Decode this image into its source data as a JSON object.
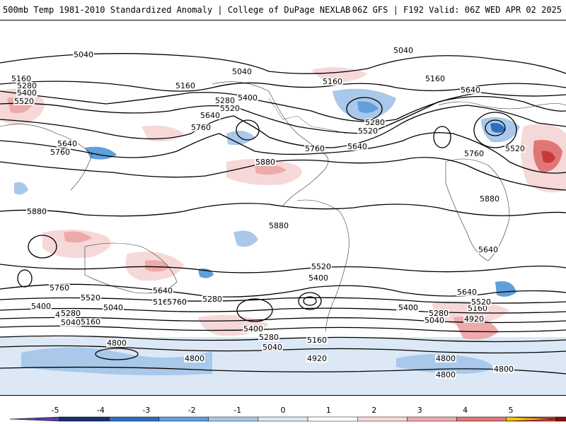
{
  "header": {
    "title_left": "500mb Temp 1981-2010 Standardized Anomaly | College of DuPage NEXLAB",
    "title_right": "06Z GFS | F192 Valid: 06Z WED APR 02 2025"
  },
  "contour_labels": [
    "5040",
    "5040",
    "5040",
    "5160",
    "5160",
    "5160",
    "5160",
    "5280",
    "5280",
    "5280",
    "5400",
    "5400",
    "5520",
    "5520",
    "5520",
    "5520",
    "5640",
    "5640",
    "5640",
    "5640",
    "5760",
    "5760",
    "5760",
    "5760",
    "5880",
    "5880",
    "5880",
    "5880",
    "5640",
    "5760",
    "5520",
    "5400",
    "5280",
    "5160",
    "5040",
    "4920",
    "5400",
    "5280",
    "5160",
    "5040",
    "4800",
    "4800",
    "4920",
    "5040",
    "5160",
    "5280",
    "5400",
    "5520",
    "5640",
    "5760",
    "5520",
    "5400",
    "5280",
    "5160",
    "5040",
    "4920",
    "4800",
    "4800",
    "4800",
    "5640",
    "5520"
  ],
  "colorbar": {
    "ticks": [
      "-5",
      "-4",
      "-3",
      "-2",
      "-1",
      "0",
      "1",
      "2",
      "3",
      "4",
      "5"
    ],
    "colors": [
      "#5a3ea8",
      "#1b2f6e",
      "#2a6fc0",
      "#5f9fdc",
      "#a9c8ea",
      "#dce8f6",
      "#ffffff",
      "#f6d8d8",
      "#eeaaaa",
      "#e07777",
      "#c83a3a",
      "#8b0a0a",
      "#ffc20e"
    ]
  }
}
